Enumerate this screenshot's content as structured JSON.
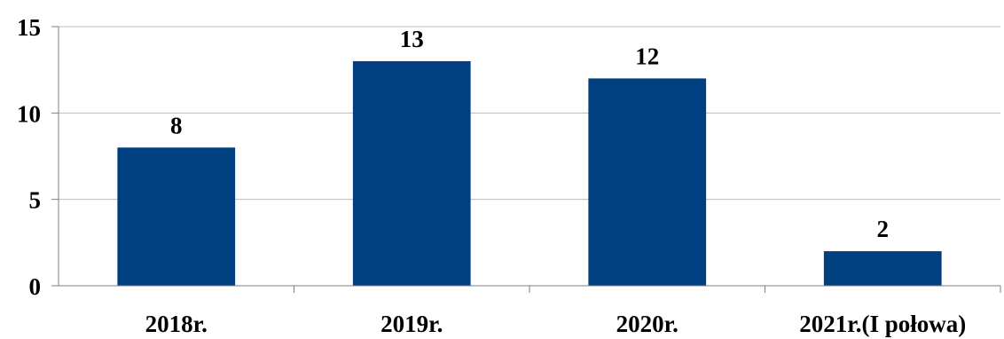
{
  "chart_data": {
    "type": "bar",
    "categories": [
      "2018r.",
      "2019r.",
      "2020r.",
      "2021r.(I połowa)"
    ],
    "values": [
      8,
      13,
      12,
      2
    ],
    "data_labels": [
      "8",
      "13",
      "12",
      "2"
    ],
    "title": "",
    "xlabel": "",
    "ylabel": "",
    "ylim": [
      0,
      15
    ],
    "yticks": [
      0,
      5,
      10,
      15
    ],
    "ytick_labels": [
      "0",
      "5",
      "10",
      "15"
    ],
    "grid": true,
    "legend": "none",
    "bar_color": "#004080"
  }
}
